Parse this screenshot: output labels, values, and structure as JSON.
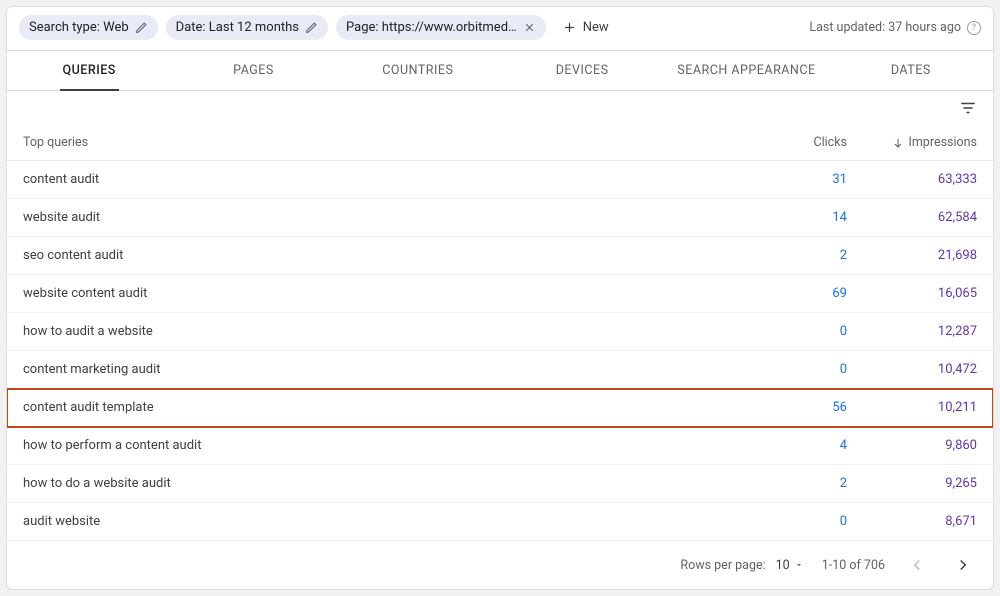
{
  "colors": {
    "chip_bg": "#e8eaf6",
    "tab_underline": "#3c4043",
    "clicks_color": "#1a73e8",
    "impressions_color": "#5e35b1",
    "highlight_border": "#c5481d",
    "row_border": "#f1f3f4",
    "header_border": "#e8eaed"
  },
  "topbar": {
    "chips": [
      {
        "label": "Search type: Web",
        "icon": "pencil"
      },
      {
        "label": "Date: Last 12 months",
        "icon": "pencil"
      },
      {
        "label": "Page: https://www.orbitmed…",
        "icon": "close"
      }
    ],
    "new_label": "New",
    "last_updated": "Last updated: 37 hours ago"
  },
  "tabs": {
    "items": [
      "QUERIES",
      "PAGES",
      "COUNTRIES",
      "DEVICES",
      "SEARCH APPEARANCE",
      "DATES"
    ],
    "active_index": 0
  },
  "table": {
    "header_query": "Top queries",
    "header_clicks": "Clicks",
    "header_impressions": "Impressions",
    "sort_column": "impressions",
    "sort_dir": "desc",
    "highlight_index": 6,
    "rows": [
      {
        "query": "content audit",
        "clicks": "31",
        "impressions": "63,333"
      },
      {
        "query": "website audit",
        "clicks": "14",
        "impressions": "62,584"
      },
      {
        "query": "seo content audit",
        "clicks": "2",
        "impressions": "21,698"
      },
      {
        "query": "website content audit",
        "clicks": "69",
        "impressions": "16,065"
      },
      {
        "query": "how to audit a website",
        "clicks": "0",
        "impressions": "12,287"
      },
      {
        "query": "content marketing audit",
        "clicks": "0",
        "impressions": "10,472"
      },
      {
        "query": "content audit template",
        "clicks": "56",
        "impressions": "10,211"
      },
      {
        "query": "how to perform a content audit",
        "clicks": "4",
        "impressions": "9,860"
      },
      {
        "query": "how to do a website audit",
        "clicks": "2",
        "impressions": "9,265"
      },
      {
        "query": "audit website",
        "clicks": "0",
        "impressions": "8,671"
      }
    ]
  },
  "pagination": {
    "rows_per_page_label": "Rows per page:",
    "rows_per_page_value": "10",
    "range": "1-10 of 706",
    "prev_enabled": false,
    "next_enabled": true
  }
}
